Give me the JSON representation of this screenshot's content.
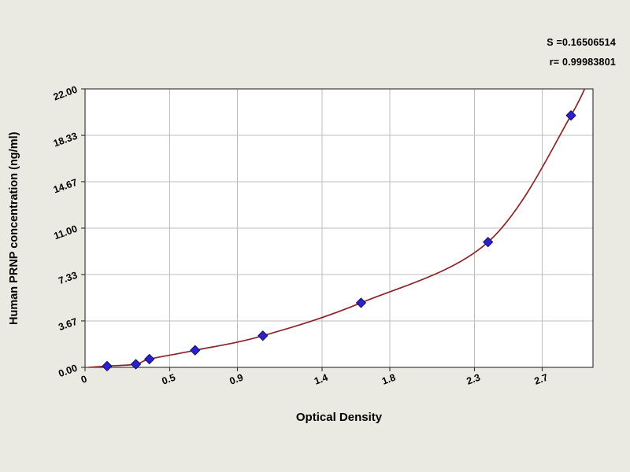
{
  "chart_data": {
    "type": "scatter",
    "title": "",
    "xlabel": "Optical Density",
    "ylabel": "Human PRNP concentration (ng/ml)",
    "xlim": [
      0,
      3.0
    ],
    "ylim": [
      0,
      22
    ],
    "grid": true,
    "legend": "none",
    "x_ticks": [
      {
        "value": 0,
        "label": "0"
      },
      {
        "value": 0.5,
        "label": "0.5"
      },
      {
        "value": 0.9,
        "label": "0.9"
      },
      {
        "value": 1.4,
        "label": "1.4"
      },
      {
        "value": 1.8,
        "label": "1.8"
      },
      {
        "value": 2.3,
        "label": "2.3"
      },
      {
        "value": 2.7,
        "label": "2.7"
      }
    ],
    "y_ticks": [
      {
        "value": 0,
        "label": "0.00"
      },
      {
        "value": 3.67,
        "label": "3.67"
      },
      {
        "value": 7.33,
        "label": "7.33"
      },
      {
        "value": 11.0,
        "label": "11.00"
      },
      {
        "value": 14.67,
        "label": "14.67"
      },
      {
        "value": 18.33,
        "label": "18.33"
      },
      {
        "value": 22.0,
        "label": "22.00"
      }
    ],
    "points": [
      {
        "x": 0.13,
        "y": 0.1
      },
      {
        "x": 0.3,
        "y": 0.25
      },
      {
        "x": 0.38,
        "y": 0.65
      },
      {
        "x": 0.65,
        "y": 1.35
      },
      {
        "x": 1.05,
        "y": 2.5
      },
      {
        "x": 1.63,
        "y": 5.1
      },
      {
        "x": 2.38,
        "y": 9.9
      },
      {
        "x": 2.87,
        "y": 19.9
      }
    ],
    "curve_start": {
      "x": 0.02,
      "y": 0.0
    },
    "curve_end": {
      "x": 3.02,
      "y": 24.5
    },
    "annotations": {
      "s_line": "S =0.16506514",
      "r_line": "r= 0.99983801"
    },
    "colors": {
      "background": "#ebeae2",
      "plot_background": "#ffffff",
      "grid": "#bdbdbd",
      "axis": "#3c3c3c",
      "curve": "#8b2328",
      "point_fill": "#2b21c8",
      "point_stroke": "#14106e",
      "text": "#000000"
    }
  }
}
